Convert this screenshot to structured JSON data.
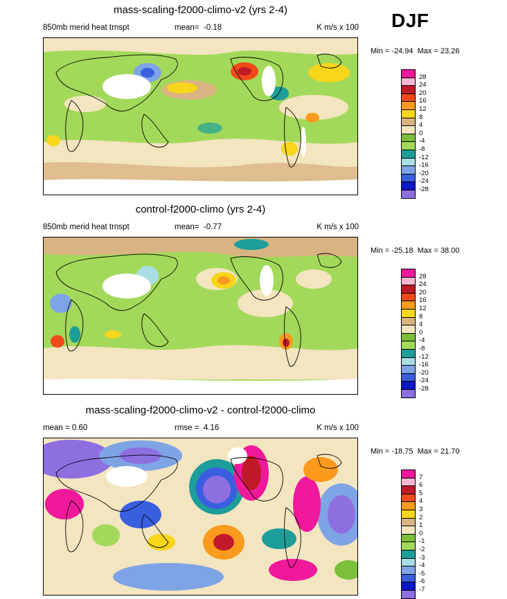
{
  "season": "DJF",
  "panels": [
    {
      "title": "mass-scaling-f2000-climo-v2 (yrs 2-4)",
      "sub_left": "850mb merid heat trnspt",
      "sub_mid_label": "mean=",
      "sub_mid_value": "-0.18",
      "units": "K m/s x 100",
      "min_max_min_label": "Min =",
      "min_value": "-24.94",
      "min_max_max_label": "Max =",
      "max_value": "23.26",
      "levels": [
        "28",
        "24",
        "20",
        "16",
        "12",
        "8",
        "4",
        "0",
        "-4",
        "-8",
        "-12",
        "-16",
        "-20",
        "-24",
        "-28"
      ],
      "colors": [
        "#f0189b",
        "#f7b6d2",
        "#c01a2a",
        "#f04a1a",
        "#fb9a1c",
        "#f7d61b",
        "#d9b382",
        "#f3e5c0",
        "#7bbf3a",
        "#a3d95a",
        "#1e9e9a",
        "#a8dde3",
        "#7ea4e6",
        "#3a5ee0",
        "#0b16c8",
        "#8e6fe0"
      ]
    },
    {
      "title": "control-f2000-climo (yrs 2-4)",
      "sub_left": "850mb merid heat trnspt",
      "sub_mid_label": "mean=",
      "sub_mid_value": "-0.77",
      "units": "K m/s x 100",
      "min_max_min_label": "Min =",
      "min_value": "-25.18",
      "min_max_max_label": "Max =",
      "max_value": "38.00",
      "levels": [
        "28",
        "24",
        "20",
        "16",
        "12",
        "8",
        "4",
        "0",
        "-4",
        "-8",
        "-12",
        "-16",
        "-20",
        "-24",
        "-28"
      ],
      "colors": [
        "#f0189b",
        "#f7b6d2",
        "#c01a2a",
        "#f04a1a",
        "#fb9a1c",
        "#f7d61b",
        "#d9b382",
        "#f3e5c0",
        "#7bbf3a",
        "#a3d95a",
        "#1e9e9a",
        "#a8dde3",
        "#7ea4e6",
        "#3a5ee0",
        "#0b16c8",
        "#8e6fe0"
      ]
    },
    {
      "title": "mass-scaling-f2000-climo-v2 - control-f2000-climo",
      "sub_left": "mean =   0.60",
      "sub_mid_label": "rmse =",
      "sub_mid_value": "4.16",
      "units": "K m/s x 100",
      "min_max_min_label": "Min =",
      "min_value": "-18.75",
      "min_max_max_label": "Max =",
      "max_value": "21.70",
      "levels": [
        "7",
        "6",
        "5",
        "4",
        "3",
        "2",
        "1",
        "0",
        "-1",
        "-2",
        "-3",
        "-4",
        "-5",
        "-6",
        "-7"
      ],
      "colors": [
        "#f0189b",
        "#f7b6d2",
        "#c01a2a",
        "#f04a1a",
        "#fb9a1c",
        "#f7d61b",
        "#d9b382",
        "#f3e5c0",
        "#7bbf3a",
        "#a3d95a",
        "#1e9e9a",
        "#a8dde3",
        "#7ea4e6",
        "#3a5ee0",
        "#0b16c8",
        "#8e6fe0"
      ]
    }
  ]
}
